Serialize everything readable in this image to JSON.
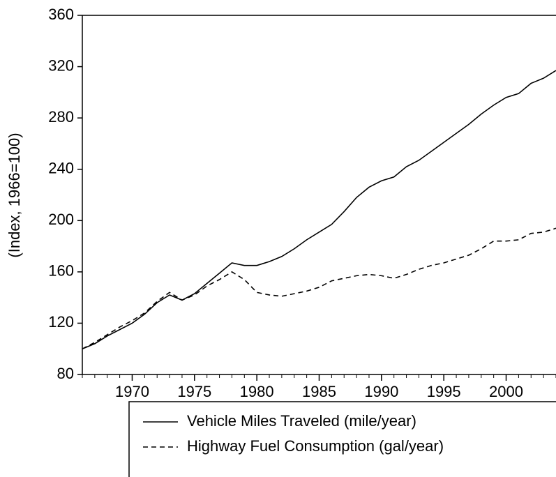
{
  "chart_data": {
    "type": "line",
    "y_label": "(Index, 1966=100)",
    "x": [
      1966,
      1967,
      1968,
      1969,
      1970,
      1971,
      1972,
      1973,
      1974,
      1975,
      1976,
      1977,
      1978,
      1979,
      1980,
      1981,
      1982,
      1983,
      1984,
      1985,
      1986,
      1987,
      1988,
      1989,
      1990,
      1991,
      1992,
      1993,
      1994,
      1995,
      1996,
      1997,
      1998,
      1999,
      2000,
      2001,
      2002,
      2003,
      2004
    ],
    "series": [
      {
        "name": "Vehicle Miles Traveled (mile/year)",
        "color": "#000000",
        "dash": "solid",
        "values": [
          100,
          104,
          110,
          115,
          120,
          127,
          136,
          142,
          138,
          143,
          151,
          159,
          167,
          165,
          165,
          168,
          172,
          178,
          185,
          191,
          197,
          207,
          218,
          226,
          231,
          234,
          242,
          247,
          254,
          261,
          268,
          275,
          283,
          290,
          296,
          299,
          307,
          311,
          317
        ]
      },
      {
        "name": "Highway Fuel Consumption (gal/year)",
        "color": "#000000",
        "dash": "dashed",
        "values": [
          100,
          105,
          111,
          117,
          122,
          128,
          137,
          144,
          138,
          142,
          149,
          154,
          160,
          154,
          144,
          142,
          141,
          143,
          145,
          148,
          153,
          155,
          157,
          158,
          157,
          155,
          158,
          162,
          165,
          167,
          170,
          173,
          178,
          184,
          184,
          185,
          190,
          191,
          194
        ]
      }
    ],
    "xlim": [
      1966,
      2004
    ],
    "xticks": [
      1970,
      1975,
      1980,
      1985,
      1990,
      1995,
      2000
    ],
    "ylim": [
      80,
      360
    ],
    "yticks": [
      80,
      120,
      160,
      200,
      240,
      280,
      320,
      360
    ],
    "grid": false
  }
}
